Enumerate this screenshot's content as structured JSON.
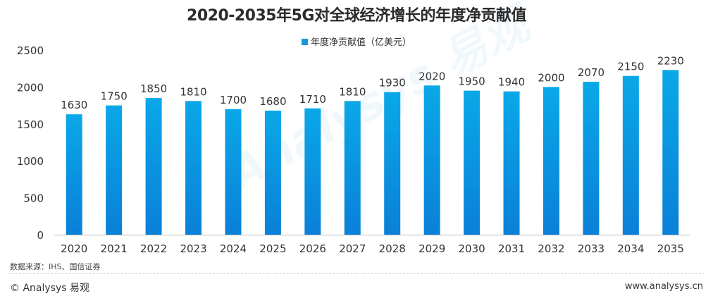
{
  "chart_data": {
    "type": "bar",
    "title": "2020-2035年5G对全球经济增长的年度净贡献值",
    "legend": {
      "label": "年度净贡献值（亿美元）",
      "placement": "top-center"
    },
    "categories": [
      "2020",
      "2021",
      "2022",
      "2023",
      "2024",
      "2025",
      "2026",
      "2027",
      "2028",
      "2029",
      "2030",
      "2031",
      "2032",
      "2033",
      "2034",
      "2035"
    ],
    "series": [
      {
        "name": "年度净贡献值（亿美元）",
        "values": [
          1630,
          1750,
          1850,
          1810,
          1700,
          1680,
          1710,
          1810,
          1930,
          2020,
          1950,
          1940,
          2000,
          2070,
          2150,
          2230
        ]
      }
    ],
    "xlabel": "",
    "ylabel": "",
    "ylim": [
      0,
      2500
    ],
    "yticks": [
      0,
      500,
      1000,
      1500,
      2000,
      2500
    ],
    "grid": false,
    "data_labels": true,
    "colors": {
      "bar_top": "#0aa8e8",
      "bar_bottom": "#0a80d8",
      "axis": "#bdbdbd"
    }
  },
  "footer": {
    "source": "数据来源：IHS、国信证券",
    "copyright": "© Analysys 易观",
    "website": "www.analysys.cn"
  },
  "watermark": "Analysys 易观"
}
